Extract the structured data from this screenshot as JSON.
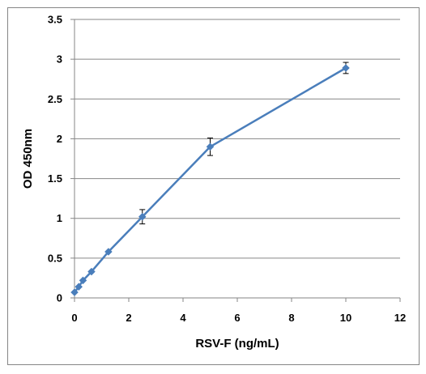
{
  "chart_data": {
    "type": "line",
    "title": "",
    "xlabel": "RSV-F (ng/mL)",
    "ylabel": "OD 450nm",
    "xlim": [
      0,
      12
    ],
    "ylim": [
      0,
      3.5
    ],
    "x_ticks": [
      "0",
      "2",
      "4",
      "6",
      "8",
      "10",
      "12"
    ],
    "y_ticks": [
      "0",
      "0.5",
      "1",
      "1.5",
      "2",
      "2.5",
      "3",
      "3.5"
    ],
    "grid": "horizontal",
    "legend": "none",
    "series": [
      {
        "x": [
          0,
          0.156,
          0.3125,
          0.625,
          1.25,
          2.5,
          5,
          10
        ],
        "y": [
          0.07,
          0.14,
          0.22,
          0.33,
          0.58,
          1.02,
          1.9,
          2.89
        ],
        "error": [
          0,
          0,
          0,
          0,
          0,
          0.09,
          0.11,
          0.07
        ],
        "color": "#4a7ebb"
      }
    ]
  }
}
